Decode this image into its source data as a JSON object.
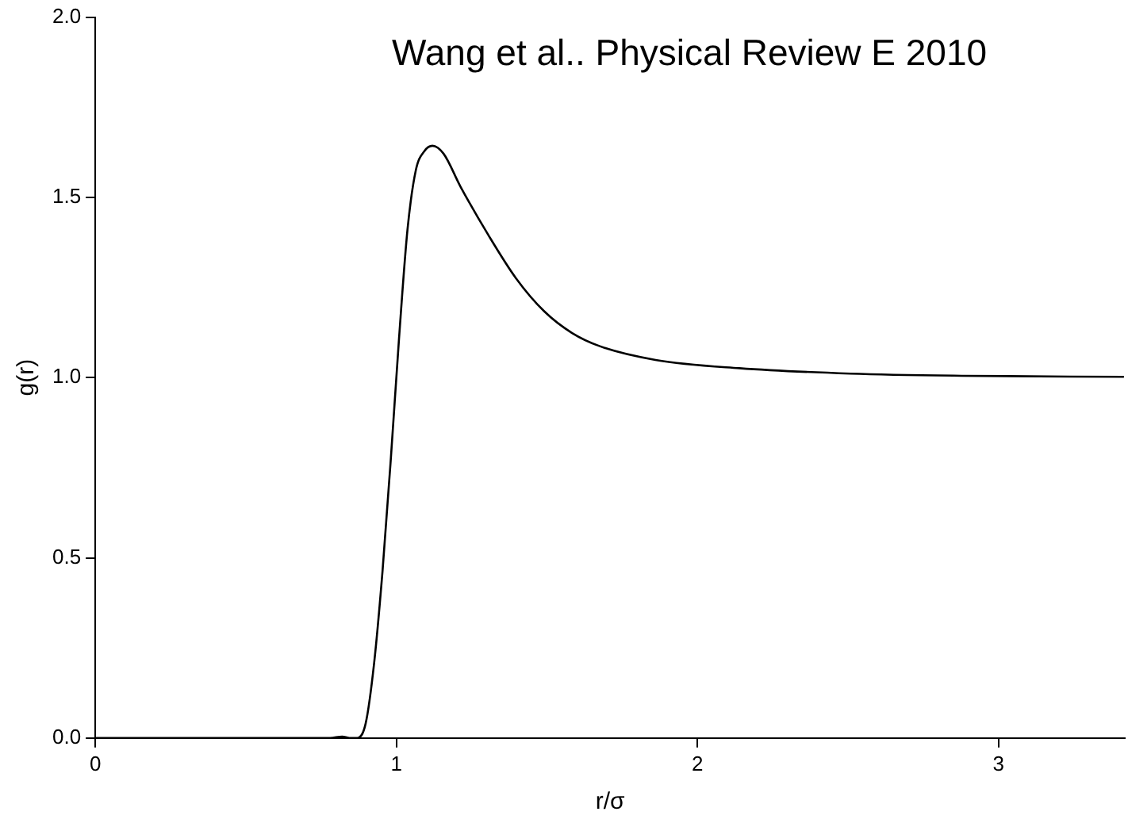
{
  "chart_data": {
    "type": "line",
    "xlabel": "r/σ",
    "ylabel": "g(r)",
    "annotations": [
      "Wang et al.. Physical Review E 2010"
    ],
    "series": [
      {
        "color": "#000000",
        "x": [
          0,
          0.2,
          0.4,
          0.6,
          0.78,
          0.82,
          0.85,
          0.87,
          0.898,
          0.926,
          0.954,
          0.982,
          1.009,
          1.037,
          1.065,
          1.093,
          1.12,
          1.157,
          1.213,
          1.306,
          1.398,
          1.491,
          1.583,
          1.676,
          1.861,
          2.139,
          2.509,
          2.878,
          3.417
        ],
        "values": [
          0,
          0,
          0,
          0,
          0,
          0.004,
          0,
          0,
          0.04,
          0.206,
          0.462,
          0.778,
          1.109,
          1.41,
          1.576,
          1.628,
          1.643,
          1.621,
          1.53,
          1.395,
          1.275,
          1.184,
          1.124,
          1.087,
          1.049,
          1.026,
          1.011,
          1.005,
          1.002
        ]
      }
    ],
    "xlim": [
      0,
      3.42
    ],
    "ylim": [
      0,
      2
    ],
    "xticks": [
      0,
      1,
      2,
      3
    ],
    "yticks": [
      {
        "value": 0,
        "label": "0.0"
      },
      {
        "value": 0.5,
        "label": "0.5"
      },
      {
        "value": 1,
        "label": "1.0"
      },
      {
        "value": 1.5,
        "label": "1.5"
      },
      {
        "value": 2,
        "label": "2.0"
      }
    ],
    "grid": false,
    "legend": false,
    "marker": "none",
    "line_style": "solid"
  }
}
